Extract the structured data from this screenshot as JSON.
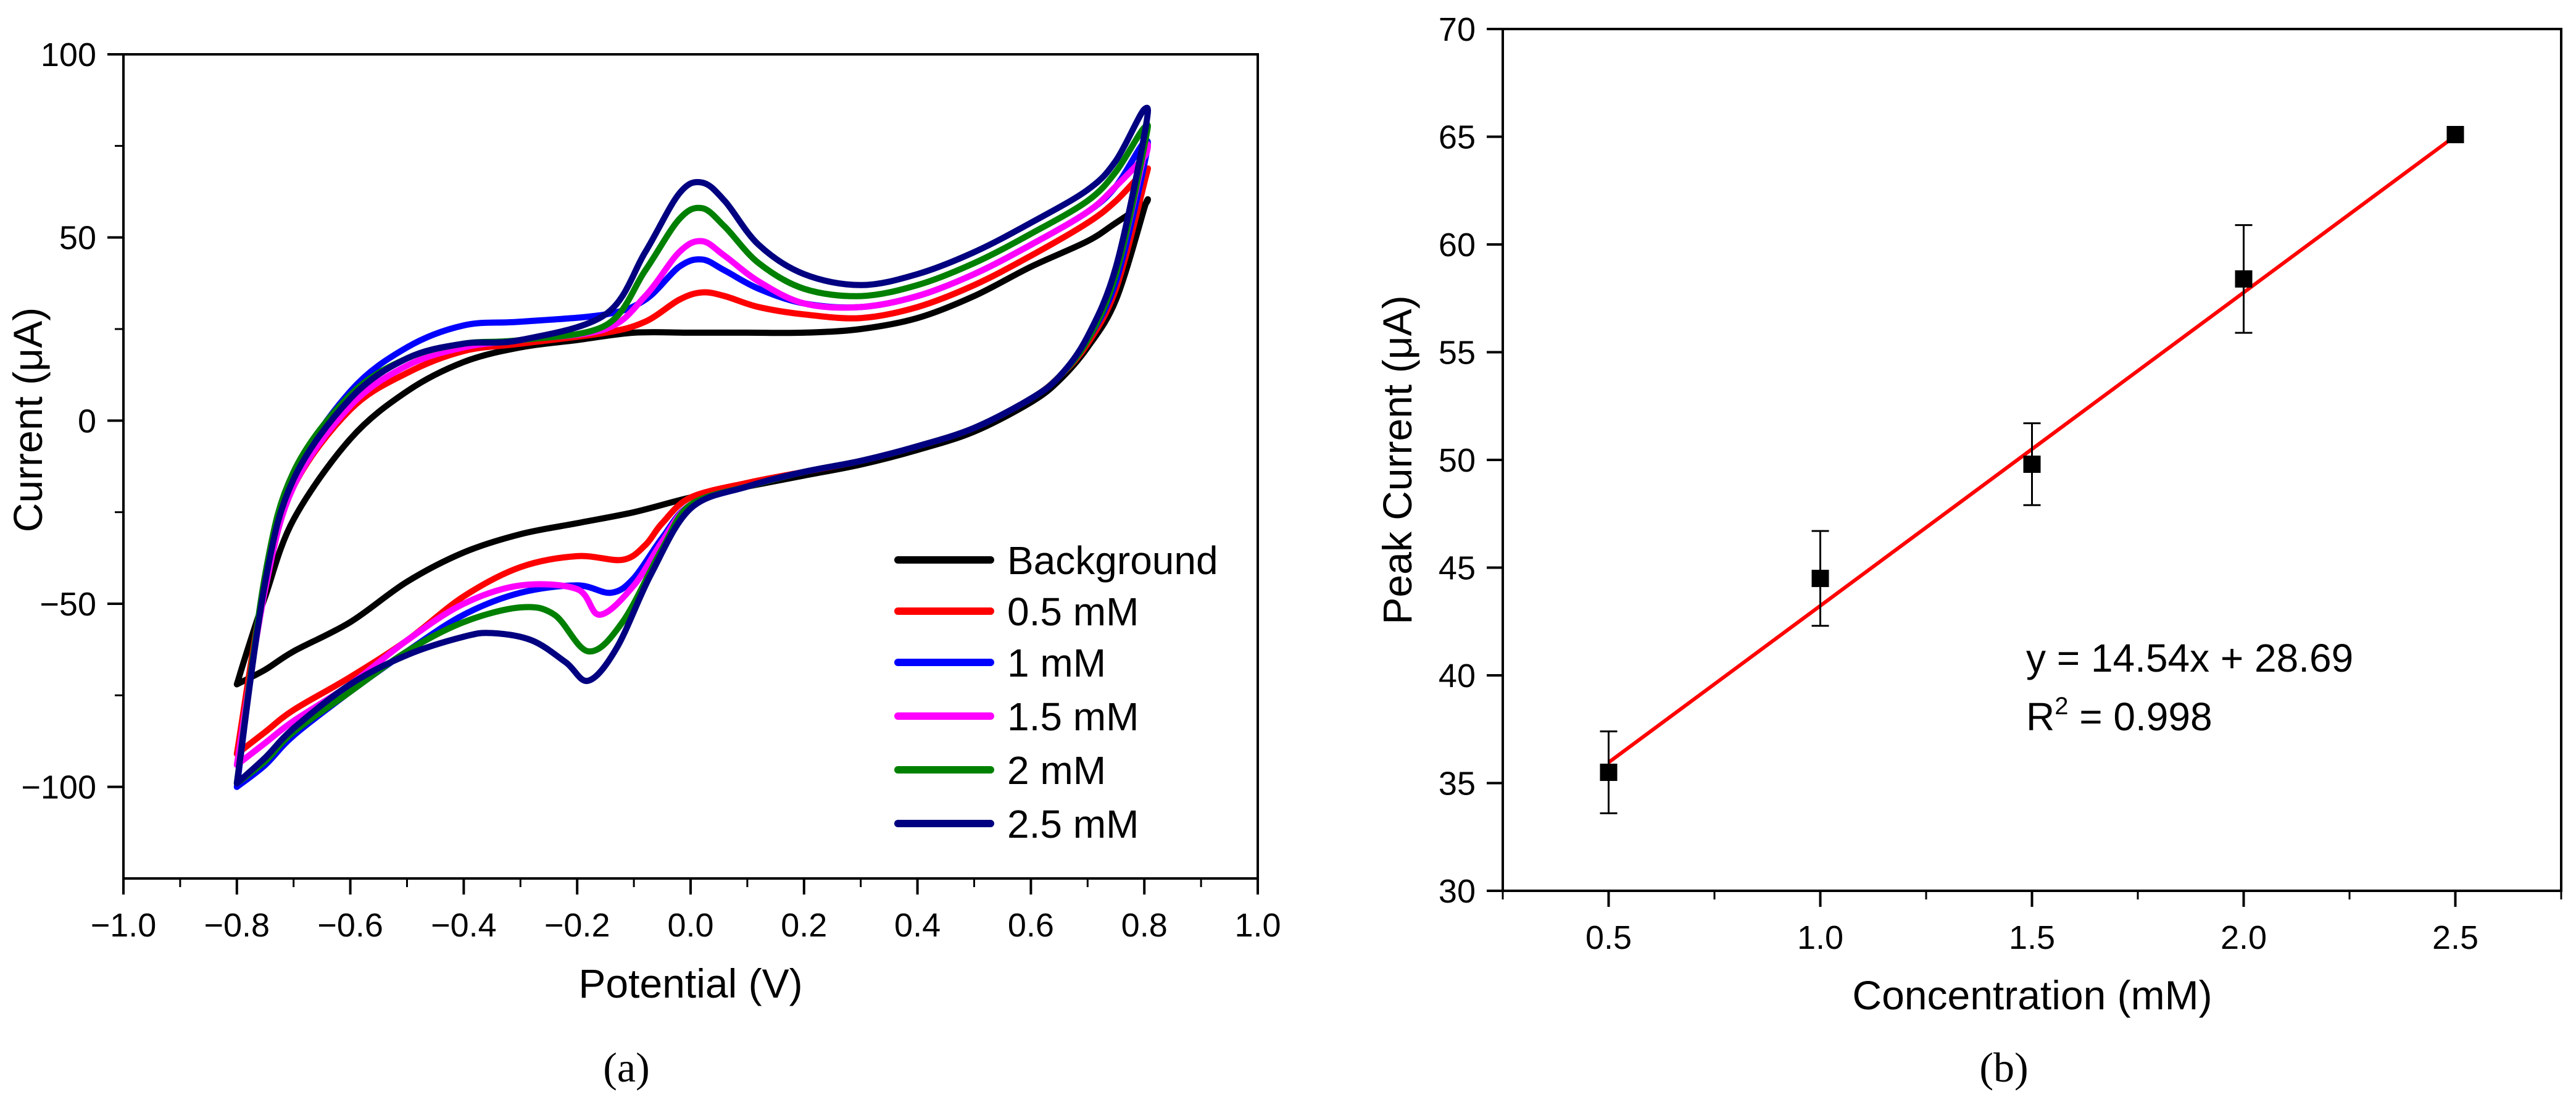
{
  "chart_data": [
    {
      "panel": "(a)",
      "type": "line",
      "title": "",
      "xlabel": "Potential (V)",
      "ylabel": "Current (μA)",
      "xlim": [
        -1.0,
        1.0
      ],
      "ylim": [
        -125,
        100
      ],
      "xticks": [
        -1.0,
        -0.8,
        -0.6,
        -0.4,
        -0.2,
        0.0,
        0.2,
        0.4,
        0.6,
        0.8,
        1.0
      ],
      "xtick_labels": [
        "−1.0",
        "−0.8",
        "−0.6",
        "−0.4",
        "−0.2",
        "0.0",
        "0.2",
        "0.4",
        "0.6",
        "0.8",
        "1.0"
      ],
      "yticks": [
        -100,
        -50,
        0,
        50,
        100
      ],
      "ytick_labels": [
        "−100",
        "−50",
        "0",
        "50",
        "100"
      ],
      "grid": false,
      "legend_position": "bottom-right",
      "series": [
        {
          "name": "Background",
          "color": "#000000",
          "points": [
            [
              -0.8,
              -72
            ],
            [
              -0.75,
              -68
            ],
            [
              -0.7,
              -63
            ],
            [
              -0.6,
              -55
            ],
            [
              -0.5,
              -44
            ],
            [
              -0.4,
              -36
            ],
            [
              -0.3,
              -31
            ],
            [
              -0.2,
              -28
            ],
            [
              -0.1,
              -25
            ],
            [
              0.0,
              -21
            ],
            [
              0.1,
              -18
            ],
            [
              0.2,
              -15
            ],
            [
              0.3,
              -12
            ],
            [
              0.4,
              -8
            ],
            [
              0.5,
              -3
            ],
            [
              0.6,
              5
            ],
            [
              0.65,
              11
            ],
            [
              0.7,
              20
            ],
            [
              0.75,
              33
            ],
            [
              0.8,
              58
            ],
            [
              0.8,
              59
            ],
            [
              0.75,
              54
            ],
            [
              0.7,
              49
            ],
            [
              0.6,
              42
            ],
            [
              0.5,
              34
            ],
            [
              0.4,
              28
            ],
            [
              0.3,
              25
            ],
            [
              0.2,
              24
            ],
            [
              0.1,
              24
            ],
            [
              0.0,
              24
            ],
            [
              -0.1,
              24
            ],
            [
              -0.2,
              22
            ],
            [
              -0.3,
              20
            ],
            [
              -0.4,
              16
            ],
            [
              -0.5,
              8
            ],
            [
              -0.6,
              -5
            ],
            [
              -0.7,
              -27
            ],
            [
              -0.75,
              -48
            ],
            [
              -0.78,
              -62
            ],
            [
              -0.8,
              -72
            ]
          ]
        },
        {
          "name": "0.5 mM",
          "color": "#ff0000",
          "points": [
            [
              -0.8,
              -91
            ],
            [
              -0.75,
              -85
            ],
            [
              -0.7,
              -79
            ],
            [
              -0.6,
              -70
            ],
            [
              -0.5,
              -60
            ],
            [
              -0.4,
              -48
            ],
            [
              -0.3,
              -40
            ],
            [
              -0.2,
              -37
            ],
            [
              -0.12,
              -38
            ],
            [
              -0.08,
              -34
            ],
            [
              -0.05,
              -28
            ],
            [
              0.0,
              -21
            ],
            [
              0.1,
              -17
            ],
            [
              0.2,
              -14
            ],
            [
              0.3,
              -11
            ],
            [
              0.4,
              -7
            ],
            [
              0.5,
              -2
            ],
            [
              0.6,
              6
            ],
            [
              0.65,
              12
            ],
            [
              0.7,
              21
            ],
            [
              0.75,
              36
            ],
            [
              0.8,
              65
            ],
            [
              0.8,
              68
            ],
            [
              0.75,
              60
            ],
            [
              0.7,
              54
            ],
            [
              0.6,
              45
            ],
            [
              0.5,
              37
            ],
            [
              0.4,
              31
            ],
            [
              0.3,
              28
            ],
            [
              0.2,
              29
            ],
            [
              0.12,
              31
            ],
            [
              0.06,
              34
            ],
            [
              0.02,
              35
            ],
            [
              -0.02,
              33
            ],
            [
              -0.08,
              27
            ],
            [
              -0.15,
              24
            ],
            [
              -0.3,
              21
            ],
            [
              -0.4,
              19
            ],
            [
              -0.5,
              13
            ],
            [
              -0.6,
              3
            ],
            [
              -0.7,
              -18
            ],
            [
              -0.75,
              -44
            ],
            [
              -0.8,
              -91
            ]
          ]
        },
        {
          "name": "1 mM",
          "color": "#0000ff",
          "points": [
            [
              -0.8,
              -100
            ],
            [
              -0.75,
              -94
            ],
            [
              -0.7,
              -86
            ],
            [
              -0.6,
              -74
            ],
            [
              -0.5,
              -63
            ],
            [
              -0.4,
              -53
            ],
            [
              -0.3,
              -47
            ],
            [
              -0.2,
              -45
            ],
            [
              -0.14,
              -47
            ],
            [
              -0.1,
              -43
            ],
            [
              -0.05,
              -32
            ],
            [
              0.0,
              -23
            ],
            [
              0.1,
              -18
            ],
            [
              0.2,
              -14
            ],
            [
              0.3,
              -11
            ],
            [
              0.4,
              -7
            ],
            [
              0.5,
              -2
            ],
            [
              0.6,
              6
            ],
            [
              0.65,
              12
            ],
            [
              0.7,
              22
            ],
            [
              0.75,
              38
            ],
            [
              0.8,
              70
            ],
            [
              0.8,
              76
            ],
            [
              0.75,
              64
            ],
            [
              0.7,
              57
            ],
            [
              0.6,
              48
            ],
            [
              0.5,
              40
            ],
            [
              0.4,
              34
            ],
            [
              0.3,
              31
            ],
            [
              0.2,
              32
            ],
            [
              0.12,
              36
            ],
            [
              0.06,
              41
            ],
            [
              0.02,
              44
            ],
            [
              -0.02,
              42
            ],
            [
              -0.08,
              33
            ],
            [
              -0.15,
              29
            ],
            [
              -0.3,
              27
            ],
            [
              -0.4,
              26
            ],
            [
              -0.5,
              20
            ],
            [
              -0.6,
              8
            ],
            [
              -0.7,
              -15
            ],
            [
              -0.75,
              -42
            ],
            [
              -0.8,
              -100
            ]
          ]
        },
        {
          "name": "1.5 mM",
          "color": "#ff00ff",
          "points": [
            [
              -0.8,
              -94
            ],
            [
              -0.75,
              -88
            ],
            [
              -0.7,
              -82
            ],
            [
              -0.6,
              -72
            ],
            [
              -0.5,
              -60
            ],
            [
              -0.4,
              -50
            ],
            [
              -0.3,
              -45
            ],
            [
              -0.2,
              -46
            ],
            [
              -0.16,
              -53
            ],
            [
              -0.1,
              -45
            ],
            [
              -0.05,
              -33
            ],
            [
              0.0,
              -23
            ],
            [
              0.1,
              -18
            ],
            [
              0.2,
              -14
            ],
            [
              0.3,
              -11
            ],
            [
              0.4,
              -7
            ],
            [
              0.5,
              -2
            ],
            [
              0.6,
              6
            ],
            [
              0.65,
              12
            ],
            [
              0.7,
              22
            ],
            [
              0.75,
              40
            ],
            [
              0.8,
              73
            ],
            [
              0.8,
              72
            ],
            [
              0.75,
              64
            ],
            [
              0.7,
              57
            ],
            [
              0.6,
              48
            ],
            [
              0.5,
              40
            ],
            [
              0.4,
              34
            ],
            [
              0.3,
              31
            ],
            [
              0.2,
              32
            ],
            [
              0.12,
              38
            ],
            [
              0.06,
              45
            ],
            [
              0.02,
              49
            ],
            [
              -0.02,
              46
            ],
            [
              -0.08,
              34
            ],
            [
              -0.15,
              25
            ],
            [
              -0.3,
              22
            ],
            [
              -0.4,
              20
            ],
            [
              -0.5,
              15
            ],
            [
              -0.6,
              4
            ],
            [
              -0.7,
              -18
            ],
            [
              -0.75,
              -46
            ],
            [
              -0.8,
              -94
            ]
          ]
        },
        {
          "name": "2 mM",
          "color": "#008000",
          "points": [
            [
              -0.8,
              -99
            ],
            [
              -0.75,
              -93
            ],
            [
              -0.7,
              -85
            ],
            [
              -0.6,
              -74
            ],
            [
              -0.5,
              -63
            ],
            [
              -0.4,
              -55
            ],
            [
              -0.3,
              -51
            ],
            [
              -0.24,
              -53
            ],
            [
              -0.18,
              -63
            ],
            [
              -0.12,
              -55
            ],
            [
              -0.05,
              -35
            ],
            [
              0.0,
              -23
            ],
            [
              0.1,
              -18
            ],
            [
              0.2,
              -14
            ],
            [
              0.3,
              -11
            ],
            [
              0.4,
              -7
            ],
            [
              0.5,
              -2
            ],
            [
              0.6,
              6
            ],
            [
              0.65,
              12
            ],
            [
              0.7,
              22
            ],
            [
              0.75,
              40
            ],
            [
              0.8,
              75
            ],
            [
              0.8,
              80
            ],
            [
              0.75,
              68
            ],
            [
              0.7,
              60
            ],
            [
              0.6,
              51
            ],
            [
              0.5,
              43
            ],
            [
              0.4,
              37
            ],
            [
              0.3,
              34
            ],
            [
              0.2,
              36
            ],
            [
              0.12,
              43
            ],
            [
              0.06,
              53
            ],
            [
              0.02,
              58
            ],
            [
              -0.02,
              55
            ],
            [
              -0.08,
              41
            ],
            [
              -0.15,
              26
            ],
            [
              -0.3,
              22
            ],
            [
              -0.4,
              21
            ],
            [
              -0.5,
              17
            ],
            [
              -0.6,
              7
            ],
            [
              -0.7,
              -14
            ],
            [
              -0.75,
              -42
            ],
            [
              -0.8,
              -99
            ]
          ]
        },
        {
          "name": "2.5 mM",
          "color": "#000080",
          "points": [
            [
              -0.8,
              -99
            ],
            [
              -0.75,
              -92
            ],
            [
              -0.7,
              -84
            ],
            [
              -0.6,
              -72
            ],
            [
              -0.5,
              -64
            ],
            [
              -0.4,
              -59
            ],
            [
              -0.35,
              -58
            ],
            [
              -0.28,
              -60
            ],
            [
              -0.22,
              -66
            ],
            [
              -0.18,
              -71
            ],
            [
              -0.13,
              -62
            ],
            [
              -0.07,
              -42
            ],
            [
              0.0,
              -24
            ],
            [
              0.1,
              -18
            ],
            [
              0.2,
              -14
            ],
            [
              0.3,
              -11
            ],
            [
              0.4,
              -7
            ],
            [
              0.5,
              -2
            ],
            [
              0.6,
              6
            ],
            [
              0.65,
              12
            ],
            [
              0.7,
              23
            ],
            [
              0.75,
              42
            ],
            [
              0.8,
              78
            ],
            [
              0.8,
              85
            ],
            [
              0.75,
              71
            ],
            [
              0.7,
              63
            ],
            [
              0.6,
              54
            ],
            [
              0.5,
              46
            ],
            [
              0.4,
              40
            ],
            [
              0.3,
              37
            ],
            [
              0.2,
              40
            ],
            [
              0.12,
              48
            ],
            [
              0.06,
              60
            ],
            [
              0.02,
              65
            ],
            [
              -0.02,
              62
            ],
            [
              -0.08,
              46
            ],
            [
              -0.15,
              29
            ],
            [
              -0.3,
              22
            ],
            [
              -0.4,
              21
            ],
            [
              -0.5,
              17
            ],
            [
              -0.6,
              6
            ],
            [
              -0.7,
              -16
            ],
            [
              -0.75,
              -44
            ],
            [
              -0.8,
              -99
            ]
          ]
        }
      ]
    },
    {
      "panel": "(b)",
      "type": "scatter",
      "title": "",
      "xlabel": "Concentration (mM)",
      "ylabel": "Peak Current (μA)",
      "xlim": [
        0.25,
        2.75
      ],
      "ylim": [
        30,
        70
      ],
      "xticks": [
        0.5,
        1.0,
        1.5,
        2.0,
        2.5
      ],
      "xtick_labels": [
        "0.5",
        "1.0",
        "1.5",
        "2.0",
        "2.5"
      ],
      "yticks": [
        30,
        35,
        40,
        45,
        50,
        55,
        60,
        65,
        70
      ],
      "ytick_labels": [
        "30",
        "35",
        "40",
        "45",
        "50",
        "55",
        "60",
        "65",
        "70"
      ],
      "grid": false,
      "x": [
        0.5,
        1.0,
        1.5,
        2.0,
        2.5
      ],
      "y": [
        35.5,
        44.5,
        49.8,
        58.4,
        65.1
      ],
      "error": [
        1.9,
        2.2,
        1.9,
        2.5,
        0
      ],
      "marker_color": "#000000",
      "fit": {
        "slope": 14.54,
        "intercept": 28.69,
        "x_range": [
          0.5,
          2.5
        ],
        "color": "#ff0000"
      },
      "annotation": {
        "equation": "y = 14.54x + 28.69",
        "r2_prefix": "R",
        "r2_sup": "2",
        "r2_suffix": " = 0.998"
      }
    }
  ]
}
